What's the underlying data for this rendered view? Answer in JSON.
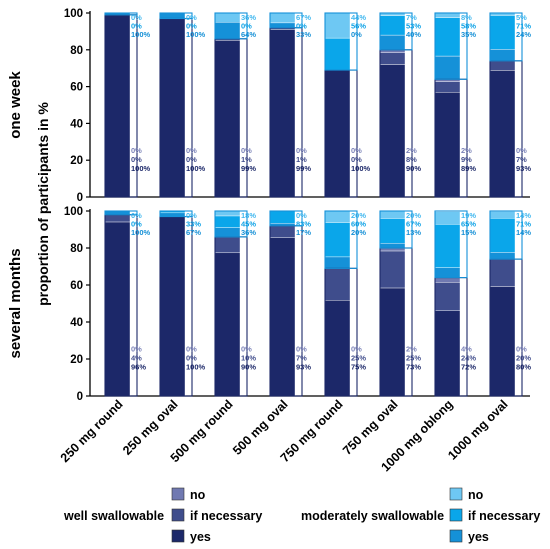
{
  "chart_data": {
    "type": "bar",
    "stacked": true,
    "ylabel": "proportion of participants in %",
    "ylim": [
      0,
      100
    ],
    "yticks": [
      "0",
      "20",
      "40",
      "60",
      "80",
      "100"
    ],
    "categories": [
      "250 mg round",
      "250 mg oval",
      "500 mg round",
      "500 mg oval",
      "750 mg round",
      "750 mg oval",
      "1000 mg oblong",
      "1000 mg oval"
    ],
    "legend": {
      "groups": [
        {
          "name": "well swallowable",
          "items": [
            "no",
            "if necessary",
            "yes"
          ],
          "colors": [
            "#7079b1",
            "#3f4d8c",
            "#1c2869"
          ]
        },
        {
          "name": "moderately swallowable",
          "items": [
            "no",
            "if necessary",
            "yes"
          ],
          "colors": [
            "#6ec8f3",
            "#0aa6ea",
            "#1591d8"
          ]
        }
      ]
    },
    "panels": [
      {
        "label": "one week",
        "well": {
          "total": [
            99,
            97,
            86,
            92,
            69,
            80,
            64,
            74
          ],
          "no": [
            "0%",
            "0%",
            "0%",
            "0%",
            "0%",
            "2%",
            "2%",
            "0%"
          ],
          "ifn": [
            "0%",
            "0%",
            "1%",
            "1%",
            "0%",
            "8%",
            "9%",
            "7%"
          ],
          "yes": [
            "100%",
            "100%",
            "99%",
            "99%",
            "100%",
            "90%",
            "89%",
            "93%"
          ],
          "fracs": [
            [
              0,
              0,
              100
            ],
            [
              0,
              0,
              100
            ],
            [
              0,
              1,
              99
            ],
            [
              0,
              1,
              99
            ],
            [
              0,
              0,
              100
            ],
            [
              2,
              8,
              90
            ],
            [
              2,
              9,
              89
            ],
            [
              0,
              7,
              93
            ]
          ]
        },
        "moderate": {
          "total": [
            1,
            3,
            14,
            8,
            31,
            20,
            36,
            26
          ],
          "no": [
            "0%",
            "0%",
            "36%",
            "67%",
            "44%",
            "7%",
            "8%",
            "5%"
          ],
          "ifn": [
            "0%",
            "0%",
            "0%",
            "0%",
            "56%",
            "53%",
            "58%",
            "71%"
          ],
          "yes": [
            "100%",
            "100%",
            "64%",
            "33%",
            "0%",
            "40%",
            "35%",
            "24%"
          ],
          "fracs": [
            [
              0,
              0,
              100
            ],
            [
              0,
              0,
              100
            ],
            [
              36,
              0,
              64
            ],
            [
              67,
              0,
              33
            ],
            [
              44,
              56,
              0
            ],
            [
              7,
              53,
              40
            ],
            [
              8,
              58,
              35
            ],
            [
              5,
              71,
              24
            ]
          ]
        }
      },
      {
        "label": "several months",
        "well": {
          "total": [
            98,
            97,
            86,
            92,
            69,
            80,
            64,
            74
          ],
          "no": [
            "0%",
            "0%",
            "0%",
            "0%",
            "0%",
            "2%",
            "4%",
            "0%"
          ],
          "ifn": [
            "4%",
            "0%",
            "10%",
            "7%",
            "25%",
            "25%",
            "24%",
            "20%"
          ],
          "yes": [
            "96%",
            "100%",
            "90%",
            "93%",
            "75%",
            "73%",
            "72%",
            "80%"
          ],
          "fracs": [
            [
              0,
              4,
              96
            ],
            [
              0,
              0,
              100
            ],
            [
              0,
              10,
              90
            ],
            [
              0,
              7,
              93
            ],
            [
              0,
              25,
              75
            ],
            [
              2,
              25,
              73
            ],
            [
              4,
              24,
              72
            ],
            [
              0,
              20,
              80
            ]
          ]
        },
        "moderate": {
          "total": [
            2,
            3,
            14,
            8,
            31,
            20,
            36,
            26
          ],
          "no": [
            "0%",
            "0%",
            "18%",
            "0%",
            "20%",
            "20%",
            "19%",
            "14%"
          ],
          "ifn": [
            "0%",
            "33%",
            "45%",
            "83%",
            "60%",
            "67%",
            "65%",
            "71%"
          ],
          "yes": [
            "100%",
            "67%",
            "36%",
            "17%",
            "20%",
            "13%",
            "15%",
            "14%"
          ],
          "fracs": [
            [
              0,
              0,
              100
            ],
            [
              0,
              33,
              67
            ],
            [
              18,
              45,
              36
            ],
            [
              0,
              83,
              17
            ],
            [
              20,
              60,
              20
            ],
            [
              20,
              67,
              13
            ],
            [
              19,
              65,
              15
            ],
            [
              14,
              71,
              14
            ]
          ]
        }
      }
    ]
  }
}
